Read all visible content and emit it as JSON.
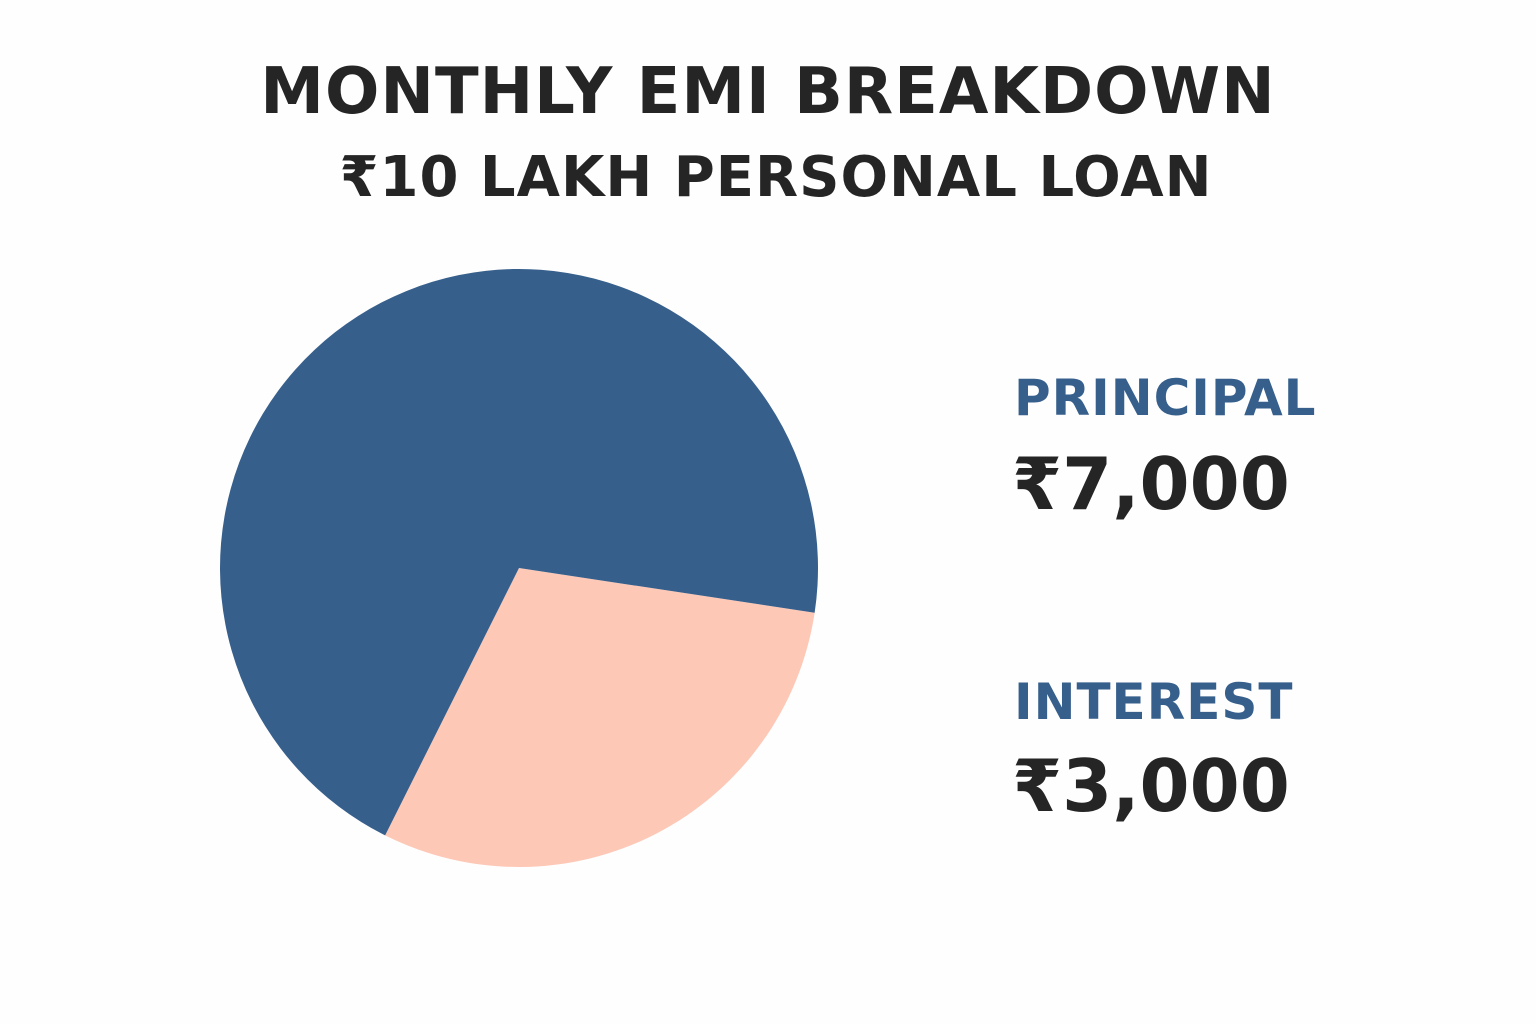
{
  "chart_data": {
    "type": "pie",
    "title": "MONTHLY EMI BREAKDOWN",
    "subtitle": "₹10 LAKH PERSONAL LOAN",
    "slices": [
      {
        "name": "PRINCIPAL",
        "label": "₹7,000",
        "value": 7000,
        "color": "#365f8c"
      },
      {
        "name": "INTEREST",
        "label": "₹3,000",
        "value": 3000,
        "color": "#fdc8b6"
      }
    ],
    "legend_position": "right",
    "label_color": "#365f8c"
  }
}
